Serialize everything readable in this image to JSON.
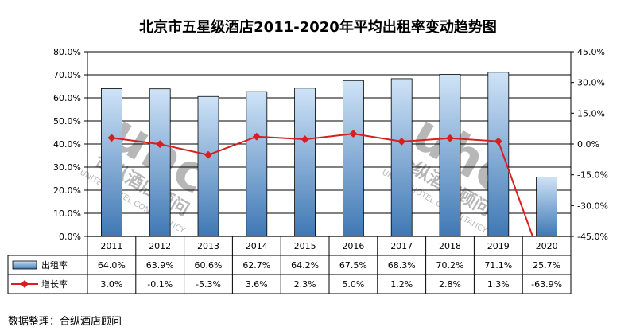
{
  "chart_data": {
    "type": "bar",
    "title": "北京市五星级酒店2011-2020年平均出租率变动趋势图",
    "categories": [
      "2011",
      "2012",
      "2013",
      "2014",
      "2015",
      "2016",
      "2017",
      "2018",
      "2019",
      "2020"
    ],
    "series": [
      {
        "name": "出租率",
        "type": "bar",
        "axis": "left",
        "values": [
          64.0,
          63.9,
          60.6,
          62.7,
          64.2,
          67.5,
          68.3,
          70.2,
          71.1,
          25.7
        ]
      },
      {
        "name": "增长率",
        "type": "line",
        "axis": "right",
        "values": [
          3.0,
          -0.1,
          -5.3,
          3.6,
          2.3,
          5.0,
          1.2,
          2.8,
          1.3,
          -63.9
        ]
      }
    ],
    "value_labels": {
      "出租率": [
        "64.0%",
        "63.9%",
        "60.6%",
        "62.7%",
        "64.2%",
        "67.5%",
        "68.3%",
        "70.2%",
        "71.1%",
        "25.7%"
      ],
      "增长率": [
        "3.0%",
        "-0.1%",
        "-5.3%",
        "3.6%",
        "2.3%",
        "5.0%",
        "1.2%",
        "2.8%",
        "1.3%",
        "-63.9%"
      ]
    },
    "y_left": {
      "ylim": [
        0,
        80
      ],
      "ticks": [
        "0.0%",
        "10.0%",
        "20.0%",
        "30.0%",
        "40.0%",
        "50.0%",
        "60.0%",
        "70.0%",
        "80.0%"
      ]
    },
    "y_right": {
      "ylim": [
        -45,
        45
      ],
      "ticks": [
        "-45.0%",
        "-30.0%",
        "-15.0%",
        "0.0%",
        "15.0%",
        "30.0%",
        "45.0%"
      ]
    },
    "grid": true,
    "legend": "data-table-left",
    "colors": {
      "bar_top": "#cfe3f7",
      "bar_bottom": "#3f78b4",
      "line": "#d81e1e",
      "grid": "#000000"
    }
  },
  "watermark": "合纵酒店顾问 UNITED HOTEL CONSULTANCY",
  "source": "数据整理：合纵酒店顾问"
}
